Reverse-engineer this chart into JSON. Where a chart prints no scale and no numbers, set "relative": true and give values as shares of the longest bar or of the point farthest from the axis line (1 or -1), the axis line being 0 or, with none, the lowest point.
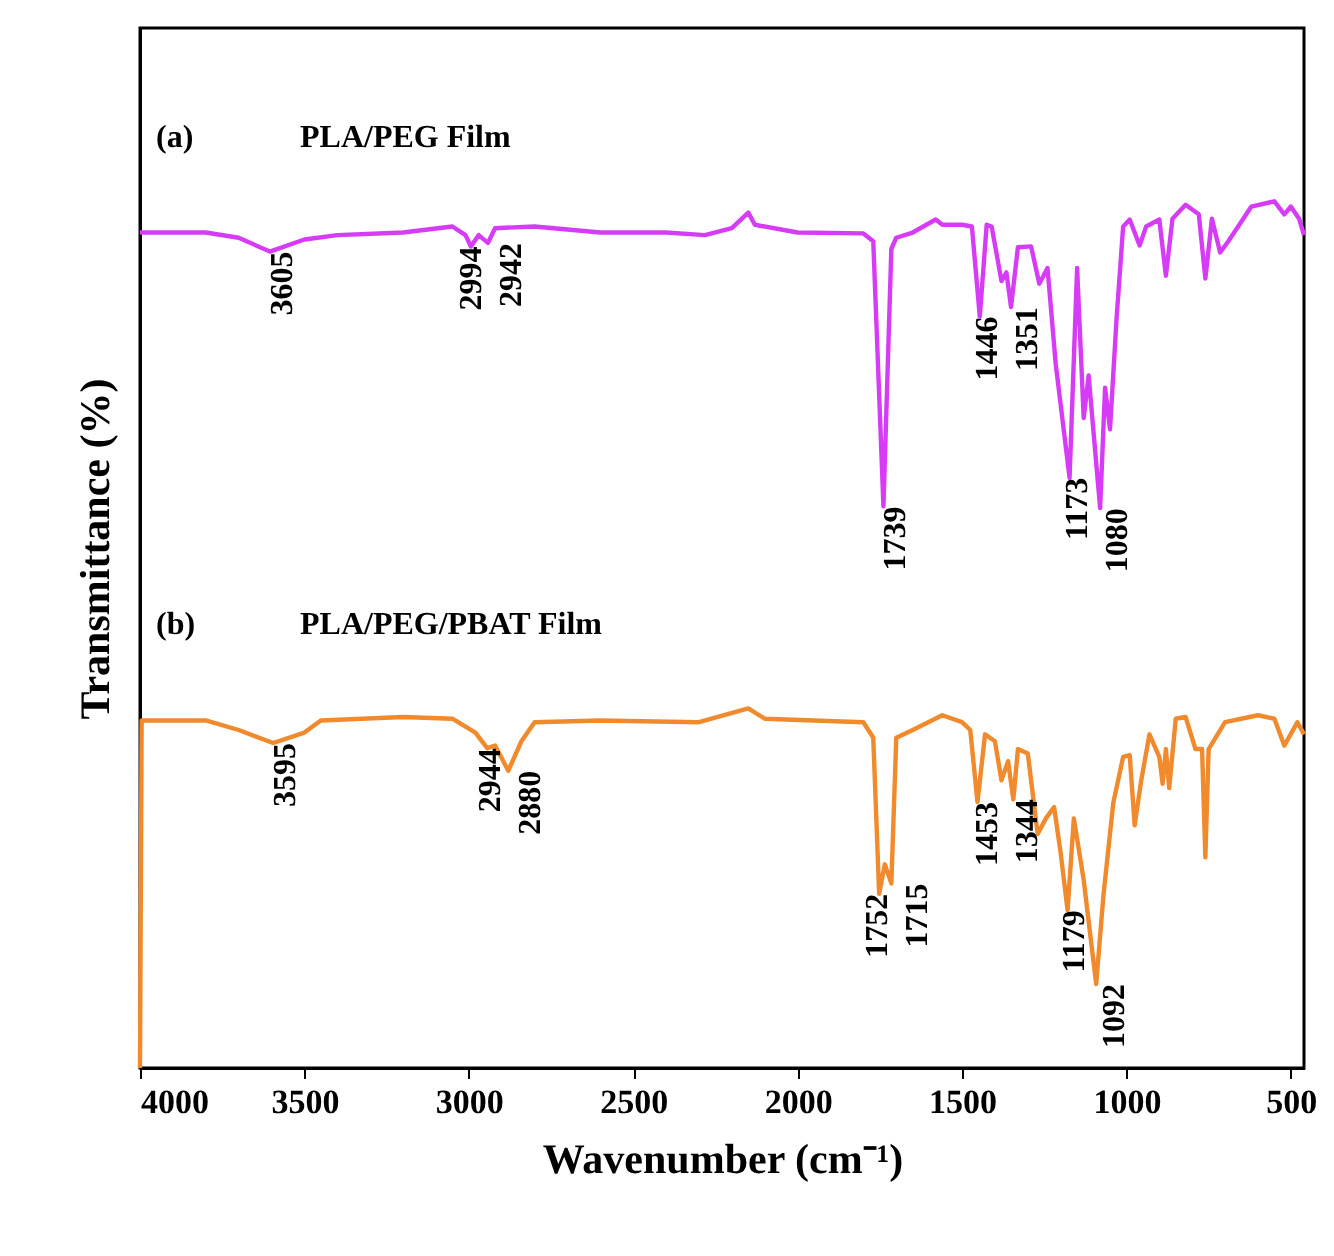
{
  "chart_data": {
    "type": "line",
    "xlabel": "Wavenumber (cm⁻¹)",
    "ylabel": "Transmittance (%)",
    "relative": true,
    "legend": false,
    "xlim": [
      4000,
      460
    ],
    "xticks": [
      4000,
      3500,
      3000,
      2500,
      2000,
      1500,
      1000,
      500
    ],
    "series": [
      {
        "name": "PLA/PEG Film",
        "color": "#d63cf5",
        "x": [
          4000,
          3800,
          3700,
          3605,
          3500,
          3400,
          3200,
          3050,
          3010,
          2994,
          2970,
          2942,
          2920,
          2800,
          2600,
          2400,
          2282,
          2200,
          2150,
          2130,
          2000,
          1800,
          1770,
          1739,
          1715,
          1700,
          1650,
          1580,
          1560,
          1500,
          1470,
          1446,
          1425,
          1410,
          1380,
          1365,
          1351,
          1330,
          1290,
          1265,
          1240,
          1215,
          1173,
          1150,
          1130,
          1115,
          1080,
          1065,
          1050,
          1030,
          1010,
          990,
          960,
          940,
          900,
          880,
          860,
          820,
          780,
          760,
          740,
          715,
          690,
          620,
          550,
          520,
          500,
          475,
          460
        ],
        "values": [
          0.964,
          0.964,
          0.958,
          0.942,
          0.956,
          0.961,
          0.964,
          0.971,
          0.961,
          0.948,
          0.961,
          0.952,
          0.969,
          0.971,
          0.964,
          0.964,
          0.961,
          0.969,
          0.987,
          0.973,
          0.964,
          0.963,
          0.954,
          0.648,
          0.945,
          0.958,
          0.964,
          0.979,
          0.973,
          0.973,
          0.971,
          0.867,
          0.973,
          0.971,
          0.908,
          0.918,
          0.878,
          0.947,
          0.948,
          0.905,
          0.923,
          0.812,
          0.681,
          0.923,
          0.75,
          0.799,
          0.646,
          0.785,
          0.737,
          0.865,
          0.971,
          0.979,
          0.949,
          0.971,
          0.979,
          0.914,
          0.98,
          0.996,
          0.985,
          0.911,
          0.98,
          0.941,
          0.954,
          0.994,
          1.0,
          0.985,
          0.994,
          0.98,
          0.961
        ]
      },
      {
        "name": "PLA/PEG/PBAT Film",
        "color": "#f08a2c",
        "x": [
          4000,
          3995,
          3800,
          3700,
          3595,
          3500,
          3450,
          3200,
          3050,
          2980,
          2944,
          2920,
          2880,
          2840,
          2800,
          2600,
          2300,
          2150,
          2100,
          1800,
          1770,
          1752,
          1735,
          1715,
          1700,
          1650,
          1560,
          1500,
          1475,
          1453,
          1430,
          1400,
          1380,
          1360,
          1344,
          1330,
          1300,
          1270,
          1245,
          1220,
          1200,
          1179,
          1160,
          1130,
          1092,
          1070,
          1040,
          1010,
          990,
          975,
          955,
          930,
          900,
          890,
          880,
          870,
          850,
          820,
          790,
          770,
          760,
          750,
          700,
          600,
          550,
          520,
          480,
          460
        ],
        "values": [
          0,
          0.401,
          0.401,
          0.39,
          0.375,
          0.387,
          0.401,
          0.405,
          0.403,
          0.387,
          0.369,
          0.372,
          0.343,
          0.377,
          0.399,
          0.401,
          0.399,
          0.415,
          0.403,
          0.399,
          0.381,
          0.201,
          0.235,
          0.213,
          0.381,
          0.39,
          0.407,
          0.399,
          0.39,
          0.307,
          0.385,
          0.377,
          0.332,
          0.354,
          0.31,
          0.368,
          0.363,
          0.27,
          0.288,
          0.301,
          0.248,
          0.182,
          0.288,
          0.217,
          0.097,
          0.199,
          0.306,
          0.359,
          0.361,
          0.28,
          0.332,
          0.385,
          0.359,
          0.328,
          0.368,
          0.323,
          0.403,
          0.405,
          0.368,
          0.368,
          0.243,
          0.368,
          0.399,
          0.407,
          0.403,
          0.372,
          0.399,
          0.385
        ]
      }
    ],
    "annotations": [
      "(a)",
      "(b)",
      {
        "text": "3605",
        "x": 3605,
        "y": 0.942
      },
      {
        "text": "2994",
        "x": 2994,
        "y": 0.948
      },
      {
        "text": "2942",
        "x": 2942,
        "y": 0.952
      },
      {
        "text": "1739",
        "x": 1739,
        "y": 0.648
      },
      {
        "text": "1446",
        "x": 1446,
        "y": 0.867
      },
      {
        "text": "1351",
        "x": 1351,
        "y": 0.878
      },
      {
        "text": "1173",
        "x": 1173,
        "y": 0.681
      },
      {
        "text": "1080",
        "x": 1080,
        "y": 0.646
      },
      {
        "text": "3595",
        "x": 3595,
        "y": 0.375
      },
      {
        "text": "2944",
        "x": 2944,
        "y": 0.369
      },
      {
        "text": "2880",
        "x": 2880,
        "y": 0.343
      },
      {
        "text": "1752",
        "x": 1752,
        "y": 0.201
      },
      {
        "text": "1715",
        "x": 1715,
        "y": 0.213
      },
      {
        "text": "1453",
        "x": 1453,
        "y": 0.307
      },
      {
        "text": "1344",
        "x": 1344,
        "y": 0.31
      },
      {
        "text": "1179",
        "x": 1179,
        "y": 0.182
      },
      {
        "text": "1092",
        "x": 1092,
        "y": 0.097
      }
    ]
  }
}
